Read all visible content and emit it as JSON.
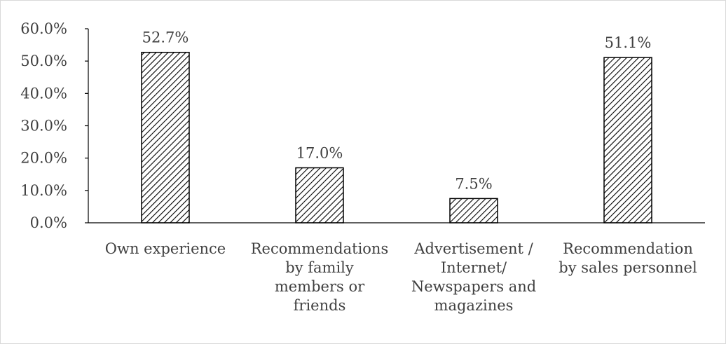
{
  "chart_data": {
    "type": "bar",
    "title": "",
    "xlabel": "",
    "ylabel": "",
    "categories": [
      "Own experience",
      "Recommendations by family members or friends",
      "Advertisement / Internet/ Newspapers and magazines",
      "Recommendation by sales personnel"
    ],
    "category_lines": [
      [
        "Own experience"
      ],
      [
        "Recommendations",
        "by family",
        "members or",
        "friends"
      ],
      [
        "Advertisement /",
        "Internet/",
        "Newspapers and",
        "magazines"
      ],
      [
        "Recommendation",
        "by sales personnel"
      ]
    ],
    "values": [
      52.7,
      17.0,
      7.5,
      51.1
    ],
    "data_labels": [
      "52.7%",
      "17.0%",
      "7.5%",
      "51.1%"
    ],
    "ylim": [
      0,
      60
    ],
    "yticks": [
      0,
      10,
      20,
      30,
      40,
      50,
      60
    ],
    "ytick_labels": [
      "0.0%",
      "10.0%",
      "20.0%",
      "30.0%",
      "40.0%",
      "50.0%",
      "60.0%"
    ],
    "grid": false,
    "legend": "none",
    "bar_fill": "diagonal-hatch",
    "colors": {
      "bar_stroke": "#000000",
      "hatch": "#000000",
      "axis": "#000000",
      "text": "#404040"
    }
  }
}
